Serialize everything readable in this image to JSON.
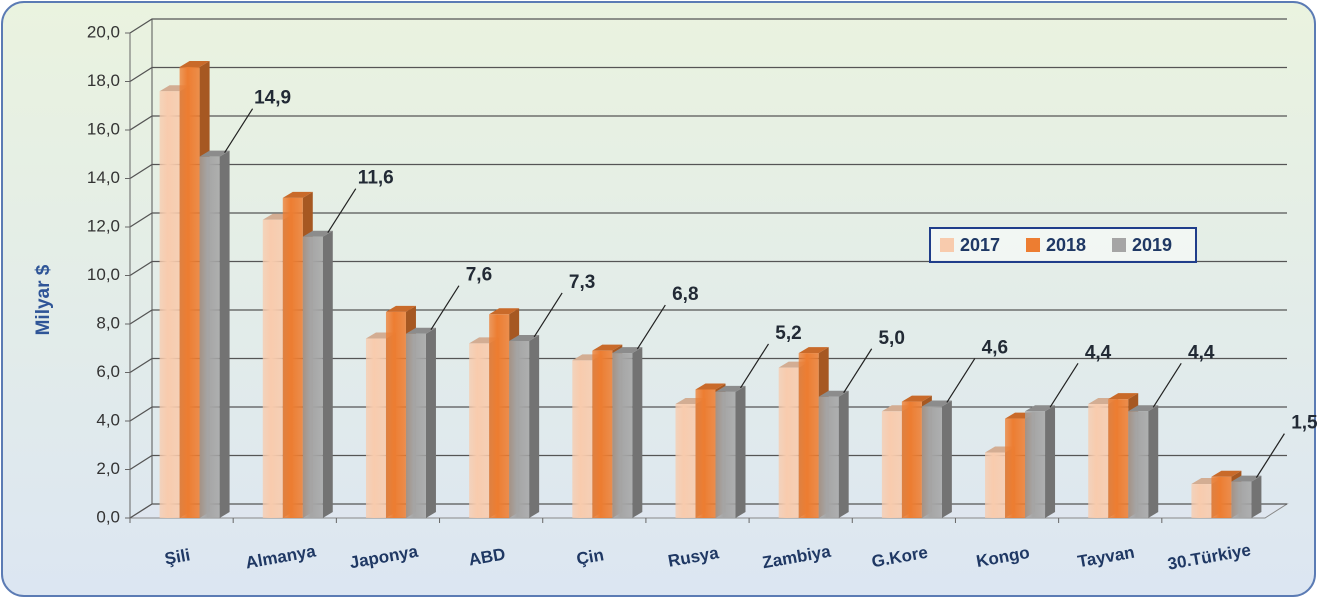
{
  "chart_data": {
    "type": "bar",
    "ylabel": "Milyar $",
    "categories": [
      "Şili",
      "Almanya",
      "Japonya",
      "ABD",
      "Çin",
      "Rusya",
      "Zambiya",
      "G.Kore",
      "Kongo",
      "Tayvan",
      "30.Türkiye"
    ],
    "series": [
      {
        "name": "2017",
        "color": "#f8cbad",
        "values": [
          17.6,
          12.3,
          7.4,
          7.2,
          6.5,
          4.7,
          6.2,
          4.4,
          2.7,
          4.7,
          1.4
        ]
      },
      {
        "name": "2018",
        "color": "#ed7d31",
        "values": [
          18.6,
          13.2,
          8.5,
          8.4,
          6.9,
          5.3,
          6.8,
          4.8,
          4.1,
          4.9,
          1.7
        ]
      },
      {
        "name": "2019",
        "color": "#a5a5a5",
        "values": [
          14.9,
          11.6,
          7.6,
          7.3,
          6.8,
          5.2,
          5.0,
          4.6,
          4.4,
          4.4,
          1.5
        ],
        "value_labels": [
          "14,9",
          "11,6",
          "7,6",
          "7,3",
          "6,8",
          "5,2",
          "5,0",
          "4,6",
          "4,4",
          "4,4",
          "1,5"
        ]
      }
    ],
    "ylim": [
      0,
      20
    ],
    "yticks": [
      {
        "value": 0,
        "label": "0,0"
      },
      {
        "value": 2,
        "label": "2,0"
      },
      {
        "value": 4,
        "label": "4,0"
      },
      {
        "value": 6,
        "label": "6,0"
      },
      {
        "value": 8,
        "label": "8,0"
      },
      {
        "value": 10,
        "label": "10,0"
      },
      {
        "value": 12,
        "label": "12,0"
      },
      {
        "value": 14,
        "label": "14,0"
      },
      {
        "value": 16,
        "label": "16,0"
      },
      {
        "value": 18,
        "label": "18,0"
      },
      {
        "value": 20,
        "label": "20,0"
      }
    ],
    "grid": true,
    "legend": "right"
  }
}
